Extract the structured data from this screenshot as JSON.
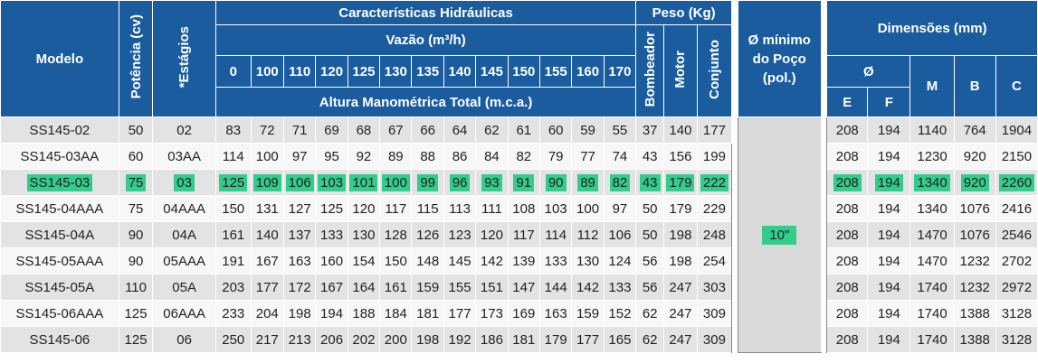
{
  "header": {
    "modelo": "Modelo",
    "potencia": "Potência (cv)",
    "estagios": "*Estágios",
    "caracteristicas": "Características Hidráulicas",
    "vazao": "Vazão (m³/h)",
    "flows": [
      "0",
      "100",
      "110",
      "120",
      "125",
      "130",
      "135",
      "140",
      "145",
      "150",
      "155",
      "160",
      "170"
    ],
    "altura": "Altura Manométrica Total (m.c.a.)",
    "peso": "Peso (Kg)",
    "bombeador": "Bombeador",
    "motor": "Motor",
    "conjunto": "Conjunto",
    "poco_line1": "Ø mínimo",
    "poco_line2": "do Poço",
    "poco_line3": "(pol.)",
    "dimensoes": "Dimensões (mm)",
    "diam": "Ø",
    "e": "E",
    "f": "F",
    "m": "M",
    "b": "B",
    "c": "C"
  },
  "highlight_color": "#33cc8c",
  "header_color": "#1a5c9e",
  "poco_value": "10\"",
  "rows": [
    {
      "modelo": "SS145-02",
      "potencia": "50",
      "estagios": "02",
      "heads": [
        "83",
        "72",
        "71",
        "69",
        "68",
        "67",
        "66",
        "64",
        "62",
        "61",
        "60",
        "59",
        "55"
      ],
      "bombeador": "37",
      "motor": "140",
      "conjunto": "177",
      "e": "208",
      "f": "194",
      "m": "1140",
      "b": "764",
      "c": "1904"
    },
    {
      "modelo": "SS145-03AA",
      "potencia": "60",
      "estagios": "03AA",
      "heads": [
        "114",
        "100",
        "97",
        "95",
        "92",
        "89",
        "88",
        "86",
        "84",
        "82",
        "79",
        "77",
        "74"
      ],
      "bombeador": "43",
      "motor": "156",
      "conjunto": "199",
      "e": "208",
      "f": "194",
      "m": "1230",
      "b": "920",
      "c": "2150"
    },
    {
      "modelo": "SS145-03",
      "potencia": "75",
      "estagios": "03",
      "heads": [
        "125",
        "109",
        "106",
        "103",
        "101",
        "100",
        "99",
        "96",
        "93",
        "91",
        "90",
        "89",
        "82"
      ],
      "bombeador": "43",
      "motor": "179",
      "conjunto": "222",
      "e": "208",
      "f": "194",
      "m": "1340",
      "b": "920",
      "c": "2260"
    },
    {
      "modelo": "SS145-04AAA",
      "potencia": "75",
      "estagios": "04AAA",
      "heads": [
        "150",
        "131",
        "127",
        "125",
        "120",
        "117",
        "115",
        "113",
        "111",
        "108",
        "103",
        "100",
        "97"
      ],
      "bombeador": "50",
      "motor": "179",
      "conjunto": "229",
      "e": "208",
      "f": "194",
      "m": "1340",
      "b": "1076",
      "c": "2416"
    },
    {
      "modelo": "SS145-04A",
      "potencia": "90",
      "estagios": "04A",
      "heads": [
        "161",
        "140",
        "137",
        "133",
        "130",
        "128",
        "126",
        "123",
        "120",
        "117",
        "114",
        "112",
        "106"
      ],
      "bombeador": "50",
      "motor": "198",
      "conjunto": "248",
      "e": "208",
      "f": "194",
      "m": "1470",
      "b": "1076",
      "c": "2546"
    },
    {
      "modelo": "SS145-05AAA",
      "potencia": "90",
      "estagios": "05AAA",
      "heads": [
        "191",
        "167",
        "163",
        "160",
        "154",
        "150",
        "148",
        "145",
        "142",
        "139",
        "133",
        "130",
        "124"
      ],
      "bombeador": "56",
      "motor": "198",
      "conjunto": "254",
      "e": "208",
      "f": "194",
      "m": "1470",
      "b": "1232",
      "c": "2702"
    },
    {
      "modelo": "SS145-05A",
      "potencia": "110",
      "estagios": "05A",
      "heads": [
        "203",
        "177",
        "172",
        "167",
        "164",
        "161",
        "159",
        "155",
        "151",
        "147",
        "144",
        "142",
        "133"
      ],
      "bombeador": "56",
      "motor": "247",
      "conjunto": "303",
      "e": "208",
      "f": "194",
      "m": "1740",
      "b": "1232",
      "c": "2972"
    },
    {
      "modelo": "SS145-06AAA",
      "potencia": "125",
      "estagios": "06AAA",
      "heads": [
        "233",
        "204",
        "198",
        "194",
        "188",
        "184",
        "181",
        "177",
        "173",
        "169",
        "163",
        "159",
        "152"
      ],
      "bombeador": "62",
      "motor": "247",
      "conjunto": "309",
      "e": "208",
      "f": "194",
      "m": "1740",
      "b": "1388",
      "c": "3128"
    },
    {
      "modelo": "SS145-06",
      "potencia": "125",
      "estagios": "06",
      "heads": [
        "250",
        "217",
        "213",
        "206",
        "202",
        "200",
        "198",
        "192",
        "186",
        "181",
        "179",
        "177",
        "165"
      ],
      "bombeador": "62",
      "motor": "247",
      "conjunto": "309",
      "e": "208",
      "f": "194",
      "m": "1740",
      "b": "1388",
      "c": "3128"
    }
  ],
  "highlighted_row": 2
}
